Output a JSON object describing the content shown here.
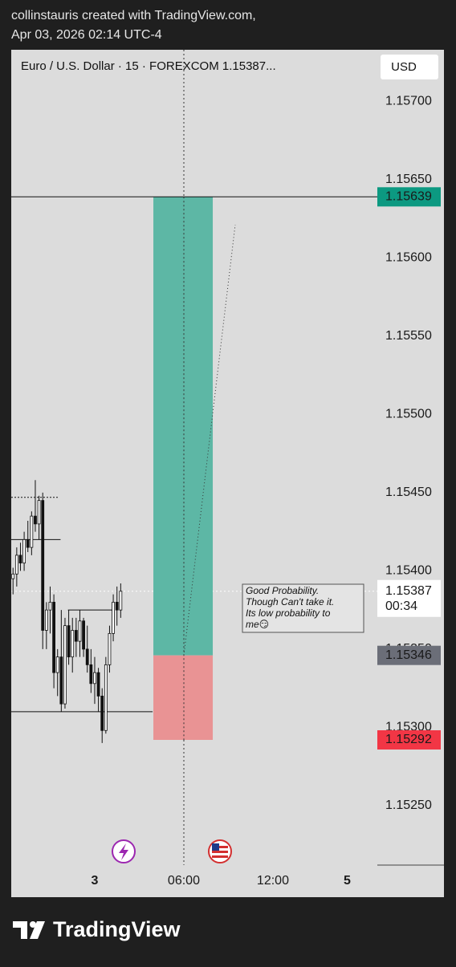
{
  "header": {
    "line1": "collinstauris created with TradingView.com,",
    "line2": "Apr 03, 2026 02:14 UTC-4"
  },
  "chart_data": {
    "type": "candlestick",
    "title": "Euro / U.S. Dollar · 15 · FOREXCOM  1.15387...",
    "currency": "USD",
    "up_color": "#ffffff",
    "down_color": "#111111",
    "xlim": [
      -5.62,
      19.03
    ],
    "xticks": [
      {
        "value": 0,
        "label": "3"
      },
      {
        "value": 6,
        "label": "06:00"
      },
      {
        "value": 12,
        "label": "12:00"
      },
      {
        "value": 17,
        "label": "5"
      }
    ],
    "ylim": [
      1.15212,
      1.15733
    ],
    "yticks": [
      {
        "value": 1.157,
        "label": "1.15700"
      },
      {
        "value": 1.1565,
        "label": "1.15650"
      },
      {
        "value": 1.156,
        "label": "1.15600"
      },
      {
        "value": 1.1555,
        "label": "1.15550"
      },
      {
        "value": 1.155,
        "label": "1.15500"
      },
      {
        "value": 1.1545,
        "label": "1.15450"
      },
      {
        "value": 1.154,
        "label": "1.15400"
      },
      {
        "value": 1.1535,
        "label": "1.15350"
      },
      {
        "value": 1.153,
        "label": "1.15300"
      },
      {
        "value": 1.1525,
        "label": "1.15250"
      }
    ],
    "x": [
      -5.5,
      -5.25,
      -5.0,
      -4.75,
      -4.5,
      -4.25,
      -4.0,
      -3.75,
      -3.5,
      -3.25,
      -3.0,
      -2.75,
      -2.5,
      -2.25,
      -2.0,
      -1.75,
      -1.5,
      -1.25,
      -1.0,
      -0.75,
      -0.5,
      -0.25,
      0,
      0.25,
      0.5,
      0.75,
      1.0,
      1.25,
      1.5,
      1.75
    ],
    "open": [
      1.15395,
      1.15398,
      1.1541,
      1.15405,
      1.1542,
      1.15415,
      1.15435,
      1.1543,
      1.15445,
      1.15362,
      1.15375,
      1.1538,
      1.15335,
      1.15345,
      1.15315,
      1.15365,
      1.15345,
      1.15362,
      1.15355,
      1.15368,
      1.1535,
      1.1534,
      1.15328,
      1.15335,
      1.1532,
      1.15298,
      1.1534,
      1.1536,
      1.1538,
      1.15375
    ],
    "high": [
      1.15402,
      1.15415,
      1.15418,
      1.15425,
      1.15432,
      1.15438,
      1.15458,
      1.15448,
      1.1545,
      1.1538,
      1.1539,
      1.15385,
      1.1535,
      1.15375,
      1.1537,
      1.15375,
      1.1537,
      1.1537,
      1.15375,
      1.1537,
      1.15365,
      1.1535,
      1.15345,
      1.15338,
      1.15325,
      1.15345,
      1.15365,
      1.15385,
      1.1539,
      1.15392
    ],
    "low": [
      1.15385,
      1.1539,
      1.154,
      1.154,
      1.15412,
      1.1541,
      1.15425,
      1.1542,
      1.1535,
      1.1535,
      1.1536,
      1.15325,
      1.1532,
      1.1531,
      1.15312,
      1.1534,
      1.15335,
      1.15345,
      1.15345,
      1.15345,
      1.15335,
      1.15322,
      1.15315,
      1.1531,
      1.1529,
      1.15296,
      1.15335,
      1.15355,
      1.15365,
      1.1537
    ],
    "close": [
      1.15398,
      1.1541,
      1.15405,
      1.1542,
      1.15415,
      1.15435,
      1.1543,
      1.15445,
      1.15362,
      1.15375,
      1.1538,
      1.15335,
      1.15345,
      1.15315,
      1.15365,
      1.15345,
      1.15362,
      1.15355,
      1.15368,
      1.1535,
      1.1534,
      1.15328,
      1.15335,
      1.1532,
      1.15298,
      1.1534,
      1.1536,
      1.1538,
      1.15375,
      1.15387
    ],
    "levels": [
      {
        "price": 1.15447,
        "x": [
          -5.62,
          -2.4
        ]
      },
      {
        "price": 1.1542,
        "x": [
          -5.62,
          -2.3
        ]
      },
      {
        "price": 1.15375,
        "x": [
          -1.8,
          1.2
        ]
      },
      {
        "price": 1.1531,
        "x": [
          -5.62,
          3.9
        ]
      }
    ],
    "position": {
      "x": [
        3.95,
        7.95
      ],
      "target": 1.15639,
      "entry": 1.15346,
      "stop": 1.15292,
      "profit_color": "#5db7a5",
      "loss_color": "#e99394"
    },
    "last_price": 1.15387,
    "countdown": "00:34",
    "annotation": [
      "Good Probability.",
      "Though Can't take it.",
      "Its low probability to",
      "me😏"
    ],
    "brand": "TradingView"
  }
}
